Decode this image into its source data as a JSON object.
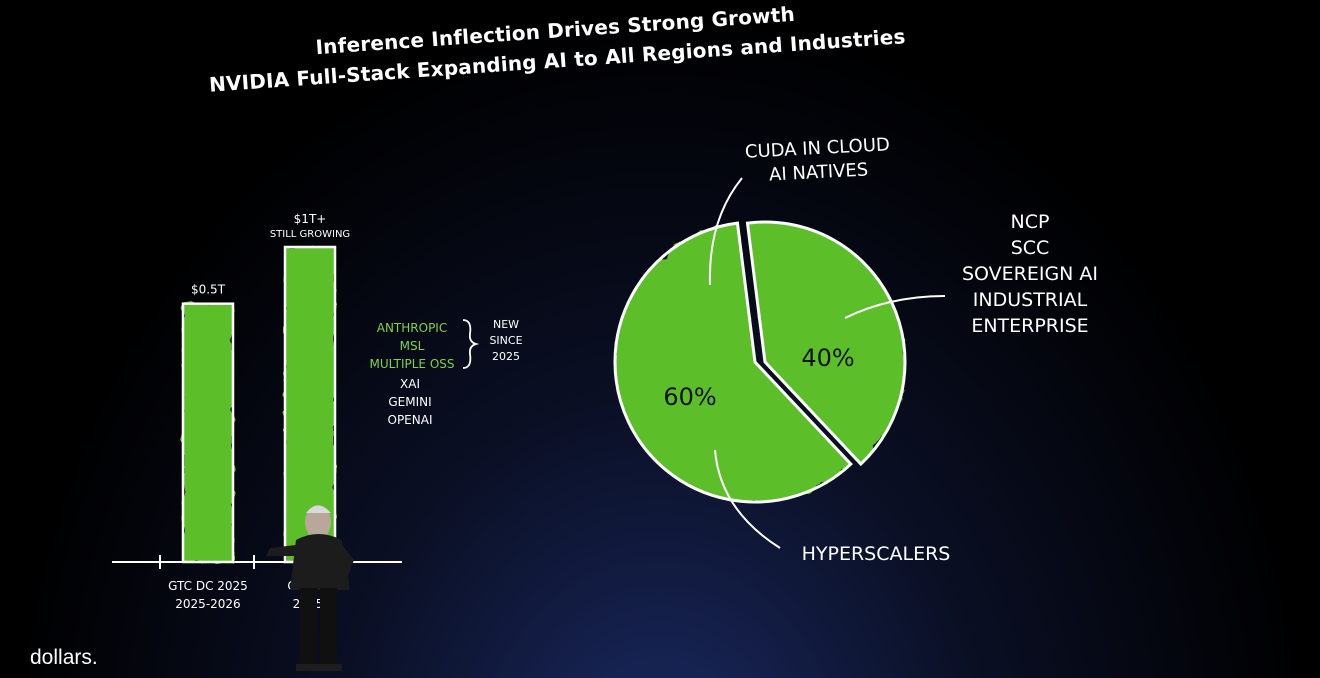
{
  "title": {
    "line1": "Inference Inflection Drives Strong Growth",
    "line2": "NVIDIA Full-Stack Expanding AI to All Regions and Industries"
  },
  "colors": {
    "bar": "#5bbf2c",
    "bar_edge": "#3f8f1a",
    "outline": "#ffffff",
    "text": "#ffffff",
    "accent_text": "#7fd347"
  },
  "chart_data": [
    {
      "type": "bar",
      "categories": [
        "GTC DC 2025\n2025-2026",
        "GTC DC\n2025-"
      ],
      "values": [
        0.5,
        1.0
      ],
      "data_labels": [
        "$0.5T",
        "$1T+\nSTILL GROWING"
      ],
      "title": "",
      "xlabel": "",
      "ylabel": "",
      "grid": false
    },
    {
      "type": "pie",
      "slices": [
        {
          "label": "HYPERSCALERS",
          "value": 60,
          "text": "60%"
        },
        {
          "label": "NCP\nSCC\nSOVEREIGN AI\nINDUSTRIAL\nENTERPRISE",
          "value": 40,
          "text": "40%"
        }
      ],
      "top_annotation": "CUDA IN CLOUD\nAI NATIVES"
    }
  ],
  "customer_list": {
    "green": [
      "ANTHROPIC",
      "MSL",
      "MULTIPLE OSS"
    ],
    "white": [
      "XAI",
      "GEMINI",
      "OPENAI"
    ],
    "bracket_label": "NEW\nSINCE\n2025"
  },
  "caption": "dollars."
}
